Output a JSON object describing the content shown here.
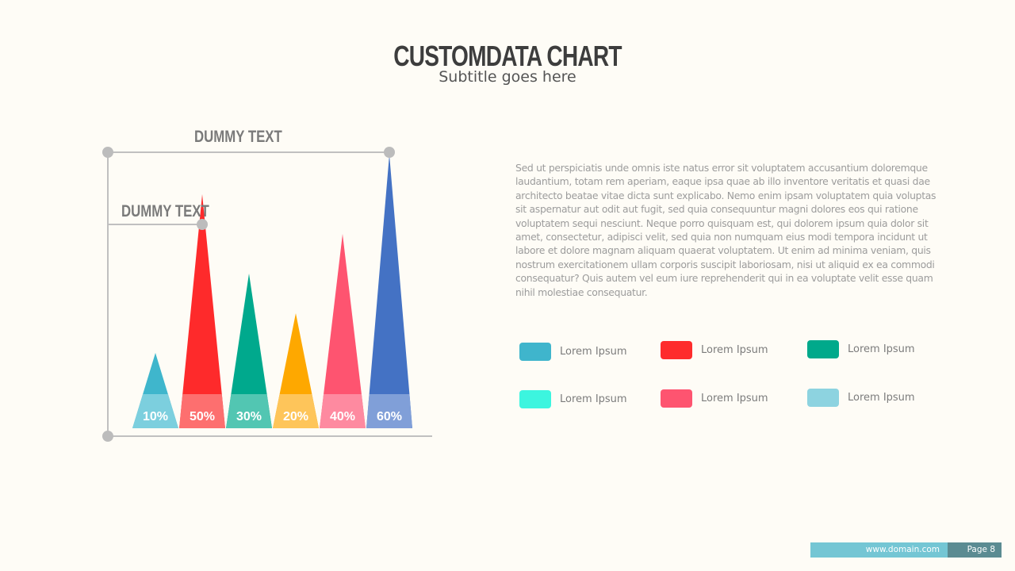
{
  "header": {
    "title": "CUSTOMDATA CHART",
    "subtitle": "Subtitle goes here"
  },
  "chart_data": {
    "type": "bar",
    "style": "triangle",
    "annotations": [
      "DUMMY TEXT",
      "DUMMY TEXT"
    ],
    "categories": [
      "10%",
      "50%",
      "30%",
      "20%",
      "40%",
      "60%"
    ],
    "values": [
      10,
      50,
      30,
      20,
      40,
      60
    ],
    "colors": [
      "#3fb6cc",
      "#fe2a2b",
      "#00a98d",
      "#fea800",
      "#fe5470",
      "#4472c4"
    ],
    "light_colors": [
      "#7ccfde",
      "#fd6f6f",
      "#52c6b2",
      "#fec55a",
      "#fe8aa0",
      "#809fd8"
    ],
    "grid": false,
    "legend": "right"
  },
  "body_text": "Sed ut perspiciatis unde omnis iste natus error sit voluptatem accusantium doloremque laudantium, totam rem aperiam, eaque ipsa quae ab illo inventore veritatis et quasi  dae architecto beatae vitae dicta sunt explicabo. Nemo enim ipsam voluptatem quia voluptas sit aspernatur aut odit aut fugit, sed quia consequuntur magni dolores eos qui ratione voluptatem sequi nesciunt. Neque porro quisquam est, qui dolorem ipsum quia dolor sit amet, consectetur, adipisci velit, sed quia non numquam eius modi tempora incidunt ut labore et dolore magnam aliquam quaerat voluptatem. Ut enim ad minima veniam, quis nostrum exercitationem ullam corporis suscipit laboriosam, nisi ut aliquid ex ea commodi consequatur? Quis autem vel eum iure reprehenderit qui in ea voluptate velit esse quam nihil molestiae consequatur.",
  "legend": [
    {
      "label": "Lorem Ipsum",
      "color": "#3fb5cc"
    },
    {
      "label": "Lorem Ipsum",
      "color": "#fe2c2c"
    },
    {
      "label": "Lorem Ipsum",
      "color": "#00a98b"
    },
    {
      "label": "Lorem Ipsum",
      "color": "#3cf5df"
    },
    {
      "label": "Lorem Ipsum",
      "color": "#fe5470"
    },
    {
      "label": "Lorem Ipsum",
      "color": "#8dd3e0"
    }
  ],
  "footer": {
    "url": "www.domain.com",
    "page": "Page 8"
  }
}
